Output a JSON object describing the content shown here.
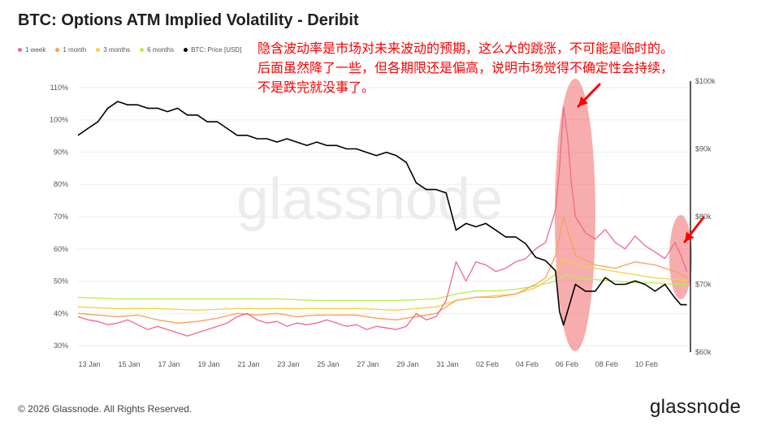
{
  "header": {
    "title": "BTC: Options ATM Implied Volatility - Deribit"
  },
  "legend": [
    {
      "label": "1 week",
      "color": "#f06a86"
    },
    {
      "label": "1 month",
      "color": "#f5a25a"
    },
    {
      "label": "3 months",
      "color": "#f5d13d"
    },
    {
      "label": "6 months",
      "color": "#b9ec4c"
    },
    {
      "label": "BTC: Price [USD]",
      "color": "#000000"
    }
  ],
  "annotation": {
    "lines": [
      "隐含波动率是市场对未来波动的预期，这么大的跳涨，不可能是临时的。",
      "后面虽然降了一些，但各期限还是偏高，说明市场觉得不确定性会持续，",
      "不是跌完就没事了。"
    ]
  },
  "watermark": "glassnode",
  "footer": {
    "copyright": "© 2026 Glassnode. All Rights Reserved.",
    "logo": "glassnode"
  },
  "colors": {
    "highlight": "#f06a6a",
    "arrow": "#ff0000"
  },
  "chart_data": {
    "type": "line",
    "x_ticks": [
      "13 Jan",
      "15 Jan",
      "17 Jan",
      "19 Jan",
      "21 Jan",
      "23 Jan",
      "25 Jan",
      "27 Jan",
      "29 Jan",
      "31 Jan",
      "02 Feb",
      "04 Feb",
      "06 Feb",
      "08 Feb",
      "10 Feb"
    ],
    "x_range_days": [
      0,
      30.7
    ],
    "y_left": {
      "ticks": [
        "30%",
        "40%",
        "50%",
        "60%",
        "70%",
        "80%",
        "90%",
        "100%",
        "110%"
      ],
      "range": [
        28,
        112
      ]
    },
    "y_right": {
      "ticks": [
        "$60k",
        "$70k",
        "$80k",
        "$90k",
        "$100k"
      ],
      "range": [
        60,
        100
      ]
    },
    "grid": "horizontal",
    "legend_position": "top-left",
    "series": [
      {
        "name": "1 week",
        "axis": "left",
        "color": "#f06a86",
        "points": [
          [
            0,
            39
          ],
          [
            0.5,
            38
          ],
          [
            1,
            37.5
          ],
          [
            1.5,
            36.5
          ],
          [
            2,
            37
          ],
          [
            2.5,
            38
          ],
          [
            3,
            36.5
          ],
          [
            3.5,
            35
          ],
          [
            4,
            36
          ],
          [
            4.5,
            35
          ],
          [
            5,
            34
          ],
          [
            5.5,
            33
          ],
          [
            6,
            34
          ],
          [
            6.5,
            35
          ],
          [
            7,
            36
          ],
          [
            7.5,
            37
          ],
          [
            8,
            39
          ],
          [
            8.5,
            40
          ],
          [
            9,
            38
          ],
          [
            9.5,
            37
          ],
          [
            10,
            37.5
          ],
          [
            10.5,
            36
          ],
          [
            11,
            37
          ],
          [
            11.5,
            36.5
          ],
          [
            12,
            37
          ],
          [
            12.5,
            38
          ],
          [
            13,
            37
          ],
          [
            13.5,
            36
          ],
          [
            14,
            36.5
          ],
          [
            14.5,
            35
          ],
          [
            15,
            36
          ],
          [
            15.5,
            35.5
          ],
          [
            16,
            35
          ],
          [
            16.5,
            36
          ],
          [
            17,
            40
          ],
          [
            17.5,
            38
          ],
          [
            18,
            39
          ],
          [
            18.5,
            44
          ],
          [
            19,
            56
          ],
          [
            19.5,
            50
          ],
          [
            20,
            56
          ],
          [
            20.5,
            55
          ],
          [
            21,
            53
          ],
          [
            21.5,
            54
          ],
          [
            22,
            56
          ],
          [
            22.5,
            57
          ],
          [
            23,
            60
          ],
          [
            23.5,
            62
          ],
          [
            24,
            72
          ],
          [
            24.2,
            85
          ],
          [
            24.4,
            104
          ],
          [
            24.6,
            95
          ],
          [
            24.8,
            80
          ],
          [
            25,
            70
          ],
          [
            25.5,
            65
          ],
          [
            26,
            63
          ],
          [
            26.5,
            66
          ],
          [
            27,
            62
          ],
          [
            27.5,
            60
          ],
          [
            28,
            64
          ],
          [
            28.5,
            61
          ],
          [
            29,
            59
          ],
          [
            29.5,
            57
          ],
          [
            30,
            62
          ],
          [
            30.3,
            58
          ],
          [
            30.6,
            53
          ]
        ]
      },
      {
        "name": "1 month",
        "axis": "left",
        "color": "#f5a25a",
        "points": [
          [
            0,
            40
          ],
          [
            1,
            39.5
          ],
          [
            2,
            39
          ],
          [
            3,
            39.5
          ],
          [
            4,
            38
          ],
          [
            5,
            37
          ],
          [
            6,
            37.5
          ],
          [
            7,
            38.5
          ],
          [
            8,
            40
          ],
          [
            9,
            39.5
          ],
          [
            10,
            40
          ],
          [
            11,
            39
          ],
          [
            12,
            39.5
          ],
          [
            13,
            39.5
          ],
          [
            14,
            39.5
          ],
          [
            15,
            38.5
          ],
          [
            16,
            38
          ],
          [
            17,
            39
          ],
          [
            18,
            40
          ],
          [
            19,
            44
          ],
          [
            20,
            45
          ],
          [
            21,
            45
          ],
          [
            22,
            46
          ],
          [
            23,
            49
          ],
          [
            23.5,
            51
          ],
          [
            24,
            58
          ],
          [
            24.4,
            70
          ],
          [
            24.7,
            64
          ],
          [
            25,
            58
          ],
          [
            26,
            55
          ],
          [
            27,
            54
          ],
          [
            28,
            56
          ],
          [
            29,
            55
          ],
          [
            30,
            53
          ],
          [
            30.6,
            51
          ]
        ]
      },
      {
        "name": "3 months",
        "axis": "left",
        "color": "#f5d13d",
        "points": [
          [
            0,
            42
          ],
          [
            2,
            41.5
          ],
          [
            4,
            41.5
          ],
          [
            6,
            41
          ],
          [
            8,
            41.5
          ],
          [
            10,
            41.5
          ],
          [
            12,
            41.5
          ],
          [
            14,
            41.5
          ],
          [
            16,
            41
          ],
          [
            17,
            41.5
          ],
          [
            18,
            42
          ],
          [
            19,
            44
          ],
          [
            20,
            45
          ],
          [
            21,
            45.5
          ],
          [
            22,
            46
          ],
          [
            23,
            48
          ],
          [
            24,
            52
          ],
          [
            24.4,
            57
          ],
          [
            25,
            55
          ],
          [
            26,
            54
          ],
          [
            27,
            53
          ],
          [
            28,
            52
          ],
          [
            29,
            51
          ],
          [
            30,
            50.5
          ],
          [
            30.6,
            50
          ]
        ]
      },
      {
        "name": "6 months",
        "axis": "left",
        "color": "#b9ec4c",
        "points": [
          [
            0,
            45
          ],
          [
            2,
            44.5
          ],
          [
            4,
            44.5
          ],
          [
            6,
            44.5
          ],
          [
            8,
            44.5
          ],
          [
            10,
            44.5
          ],
          [
            12,
            44
          ],
          [
            14,
            44
          ],
          [
            16,
            44
          ],
          [
            18,
            44.5
          ],
          [
            19,
            46
          ],
          [
            20,
            47
          ],
          [
            21,
            47
          ],
          [
            22,
            47.5
          ],
          [
            23,
            48.5
          ],
          [
            24,
            50
          ],
          [
            24.5,
            52
          ],
          [
            25,
            51
          ],
          [
            26,
            50.5
          ],
          [
            27,
            50
          ],
          [
            28,
            49.5
          ],
          [
            29,
            49.5
          ],
          [
            30,
            49
          ],
          [
            30.6,
            49
          ]
        ]
      },
      {
        "name": "BTC: Price [USD]",
        "axis": "right",
        "color": "#000000",
        "points": [
          [
            0,
            92
          ],
          [
            0.5,
            93
          ],
          [
            1,
            94
          ],
          [
            1.5,
            96
          ],
          [
            2,
            97
          ],
          [
            2.5,
            96.5
          ],
          [
            3,
            96.5
          ],
          [
            3.5,
            96
          ],
          [
            4,
            96
          ],
          [
            4.5,
            95.5
          ],
          [
            5,
            96
          ],
          [
            5.5,
            95
          ],
          [
            6,
            95
          ],
          [
            6.5,
            94
          ],
          [
            7,
            94
          ],
          [
            7.5,
            93
          ],
          [
            8,
            92
          ],
          [
            8.5,
            92
          ],
          [
            9,
            91.5
          ],
          [
            9.5,
            91.5
          ],
          [
            10,
            91
          ],
          [
            10.5,
            91.5
          ],
          [
            11,
            91
          ],
          [
            11.5,
            90.5
          ],
          [
            12,
            91
          ],
          [
            12.5,
            90.5
          ],
          [
            13,
            90.5
          ],
          [
            13.5,
            90
          ],
          [
            14,
            90
          ],
          [
            14.5,
            89.5
          ],
          [
            15,
            89
          ],
          [
            15.5,
            89.5
          ],
          [
            16,
            89
          ],
          [
            16.5,
            88
          ],
          [
            17,
            85
          ],
          [
            17.5,
            84
          ],
          [
            18,
            84
          ],
          [
            18.5,
            83.5
          ],
          [
            19,
            78
          ],
          [
            19.5,
            79
          ],
          [
            20,
            78.5
          ],
          [
            20.5,
            79
          ],
          [
            21,
            78
          ],
          [
            21.5,
            77
          ],
          [
            22,
            77
          ],
          [
            22.5,
            76
          ],
          [
            23,
            74
          ],
          [
            23.5,
            73.5
          ],
          [
            24,
            72
          ],
          [
            24.2,
            66
          ],
          [
            24.4,
            64
          ],
          [
            24.6,
            66
          ],
          [
            24.8,
            68
          ],
          [
            25,
            70
          ],
          [
            25.5,
            69
          ],
          [
            26,
            69
          ],
          [
            26.5,
            71
          ],
          [
            27,
            70
          ],
          [
            27.5,
            70
          ],
          [
            28,
            70.5
          ],
          [
            28.5,
            70
          ],
          [
            29,
            69
          ],
          [
            29.5,
            70
          ],
          [
            30,
            68
          ],
          [
            30.3,
            67
          ],
          [
            30.6,
            67
          ]
        ]
      }
    ]
  }
}
